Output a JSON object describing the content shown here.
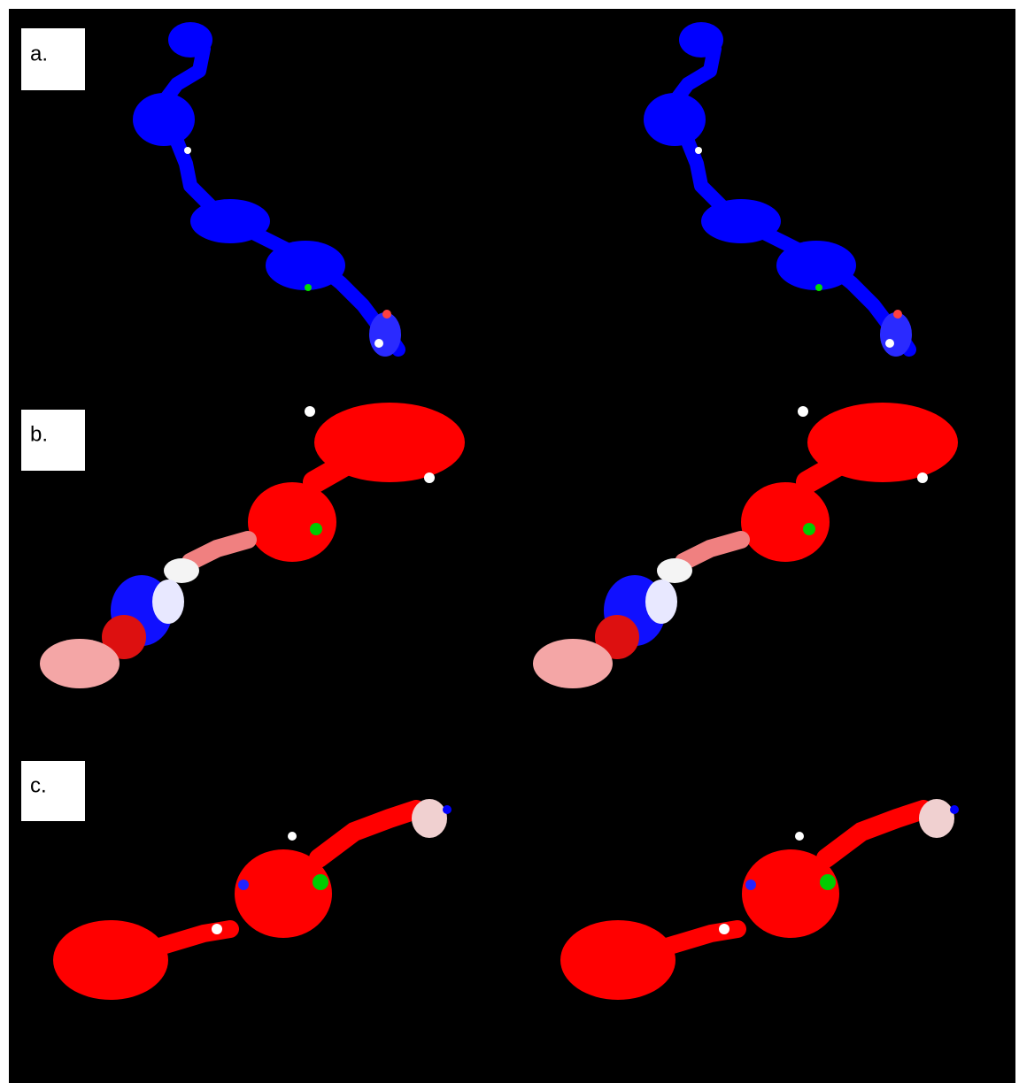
{
  "panels": [
    {
      "label": "a."
    },
    {
      "label": "b."
    },
    {
      "label": "c."
    }
  ]
}
